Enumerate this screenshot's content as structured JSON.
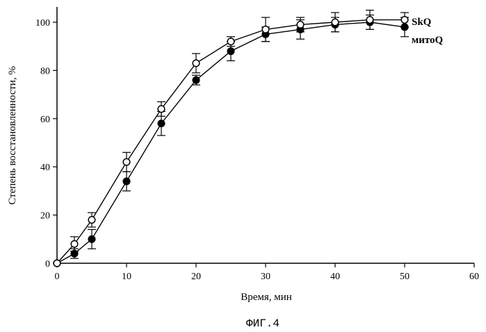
{
  "chart_data": {
    "type": "line",
    "xlabel": "Время, мин",
    "ylabel": "Степень восстановленности, %",
    "xlim": [
      0,
      60
    ],
    "ylim": [
      0,
      100
    ],
    "xticks": [
      "0",
      "10",
      "20",
      "30",
      "40",
      "50",
      "60"
    ],
    "yticks": [
      "0",
      "20",
      "40",
      "60",
      "80",
      "100"
    ],
    "grid": false,
    "series": [
      {
        "name": "SkQ",
        "marker": "open-circle",
        "x": [
          0,
          2.5,
          5,
          10,
          15,
          20,
          25,
          30,
          35,
          40,
          45,
          50
        ],
        "y": [
          0,
          8,
          18,
          42,
          64,
          83,
          92,
          97,
          99,
          100,
          101,
          101
        ],
        "err": [
          0,
          3,
          3,
          4,
          3,
          4,
          2,
          5,
          3,
          4,
          4,
          3
        ]
      },
      {
        "name": "митоQ",
        "marker": "filled-circle",
        "x": [
          0,
          2.5,
          5,
          10,
          15,
          20,
          25,
          30,
          35,
          40,
          45,
          50
        ],
        "y": [
          0,
          4,
          10,
          34,
          58,
          76,
          88,
          95,
          97,
          99,
          100,
          98
        ],
        "err": [
          0,
          2,
          4,
          4,
          5,
          2,
          4,
          3,
          4,
          3,
          3,
          4
        ]
      }
    ]
  },
  "caption": "ФИГ.4"
}
